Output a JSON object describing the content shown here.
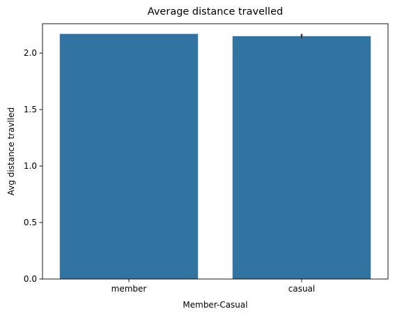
{
  "chart_data": {
    "type": "bar",
    "title": "Average distance travelled",
    "xlabel": "Member-Casual",
    "ylabel": "Avg distance travlled",
    "categories": [
      "member",
      "casual"
    ],
    "values": [
      2.17,
      2.15
    ],
    "error_bars": [
      null,
      [
        2.13,
        2.17
      ]
    ],
    "ylim": [
      0,
      2.26
    ],
    "yticks": [
      "0.0",
      "0.5",
      "1.0",
      "1.5",
      "2.0"
    ],
    "ytick_values": [
      0.0,
      0.5,
      1.0,
      1.5,
      2.0
    ],
    "grid": false,
    "legend": "none",
    "bar_color": "#3274a1",
    "error_color": "#3f3f3f"
  }
}
